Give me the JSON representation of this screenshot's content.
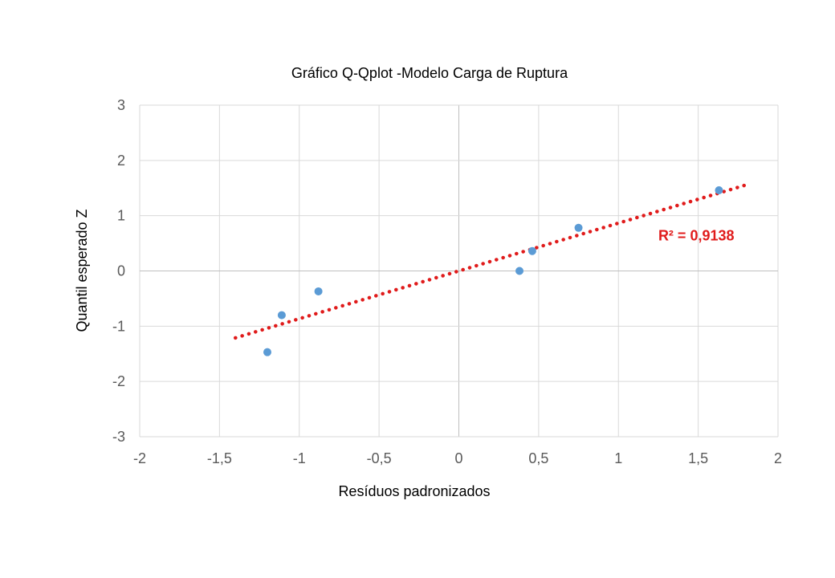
{
  "colors": {
    "point": "#5b9bd5",
    "trendline": "#e01b1b",
    "grid": "#d9d9d9",
    "zero_axis": "#bfbfbf",
    "tick_text": "#595959"
  },
  "chart_data": {
    "type": "scatter",
    "title": "Gráfico Q-Qplot -Modelo Carga de Ruptura",
    "xlabel": "Resíduos padronizados",
    "ylabel": "Quantil  esperado Z",
    "xlim": [
      -2,
      2
    ],
    "ylim": [
      -3,
      3
    ],
    "xticks": [
      -2,
      -1.5,
      -1,
      -0.5,
      0,
      0.5,
      1,
      1.5,
      2
    ],
    "xtick_labels": [
      "-2",
      "-1,5",
      "-1",
      "-0,5",
      "0",
      "0,5",
      "1",
      "1,5",
      "2"
    ],
    "yticks": [
      -3,
      -2,
      -1,
      0,
      1,
      2,
      3
    ],
    "ytick_labels": [
      "-3",
      "-2",
      "-1",
      "0",
      "1",
      "2",
      "3"
    ],
    "grid": true,
    "series": [
      {
        "points": [
          {
            "x": -1.2,
            "y": -1.47
          },
          {
            "x": -1.11,
            "y": -0.8
          },
          {
            "x": -0.88,
            "y": -0.37
          },
          {
            "x": 0.38,
            "y": 0.0
          },
          {
            "x": 0.46,
            "y": 0.36
          },
          {
            "x": 0.75,
            "y": 0.78
          },
          {
            "x": 1.63,
            "y": 1.46
          }
        ]
      }
    ],
    "trendline": {
      "style": "dotted",
      "x_start": -1.4,
      "x_end": 1.8,
      "slope": 0.865,
      "intercept": 0.0,
      "label": "R² = 0,9138",
      "label_anchor": {
        "x": 1.25,
        "y": 0.55
      }
    }
  }
}
